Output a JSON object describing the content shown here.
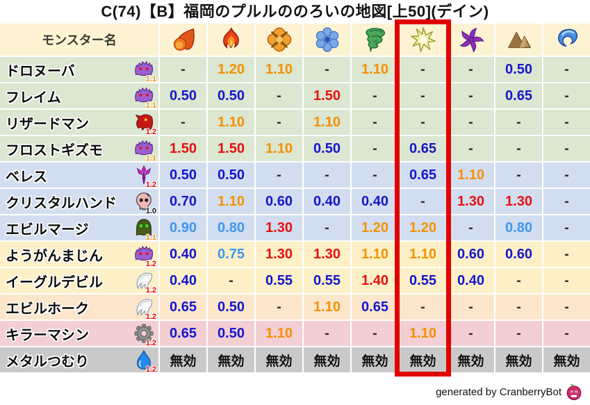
{
  "title": "C(74)【B】福岡のプルルののろいの地図[上50](デイン)",
  "header": {
    "monster_name_label": "モンスター名",
    "element_columns": [
      {
        "icon": "fireball-icon"
      },
      {
        "icon": "flame-icon"
      },
      {
        "icon": "explosion-icon"
      },
      {
        "icon": "snowflake-icon"
      },
      {
        "icon": "tornado-icon"
      },
      {
        "icon": "sparkle-icon"
      },
      {
        "icon": "pinwheel-icon"
      },
      {
        "icon": "mountain-icon"
      },
      {
        "icon": "wave-icon"
      }
    ],
    "highlighted_column_index": 5
  },
  "rows": [
    {
      "name": "ドロヌーバ",
      "icon": "purple-blob-monster-icon",
      "multiplier": "1.1",
      "multiplier_color": "#f59000",
      "palette": "green",
      "values": [
        "-",
        "1.20",
        "1.10",
        "-",
        "1.10",
        "-",
        "-",
        "0.50",
        "-"
      ]
    },
    {
      "name": "フレイム",
      "icon": "purple-blob-monster-icon",
      "multiplier": "1.1",
      "multiplier_color": "#f59000",
      "palette": "green",
      "values": [
        "0.50",
        "0.50",
        "-",
        "1.50",
        "-",
        "-",
        "-",
        "0.65",
        "-"
      ]
    },
    {
      "name": "リザードマン",
      "icon": "dragon-head-monster-icon",
      "multiplier": "1.2",
      "multiplier_color": "#e60000",
      "palette": "green",
      "values": [
        "-",
        "1.10",
        "-",
        "1.10",
        "-",
        "-",
        "-",
        "-",
        "-"
      ]
    },
    {
      "name": "フロストギズモ",
      "icon": "purple-blob-monster-icon",
      "multiplier": "1.1",
      "multiplier_color": "#f59000",
      "palette": "green",
      "values": [
        "1.50",
        "1.50",
        "1.10",
        "0.50",
        "-",
        "0.65",
        "-",
        "-",
        "-"
      ]
    },
    {
      "name": "ベレス",
      "icon": "trident-monster-icon",
      "multiplier": "1.2",
      "multiplier_color": "#e60000",
      "palette": "blue",
      "values": [
        "0.50",
        "0.50",
        "-",
        "-",
        "-",
        "0.65",
        "1.10",
        "-",
        "-"
      ]
    },
    {
      "name": "クリスタルハンド",
      "icon": "skull-monster-icon",
      "multiplier": "1.0",
      "multiplier_color": "#111111",
      "palette": "blue",
      "values": [
        "0.70",
        "1.10",
        "0.60",
        "0.40",
        "0.40",
        "-",
        "1.30",
        "1.30",
        "-"
      ]
    },
    {
      "name": "エビルマージ",
      "icon": "helmet-monster-icon",
      "multiplier": "1.1",
      "multiplier_color": "#f59000",
      "palette": "blue",
      "values": [
        "0.90",
        "0.80",
        "1.30",
        "-",
        "1.20",
        "1.20",
        "-",
        "0.80",
        "-"
      ]
    },
    {
      "name": "ようがんまじん",
      "icon": "purple-blob-monster-icon",
      "multiplier": "1.2",
      "multiplier_color": "#e60000",
      "palette": "cream",
      "values": [
        "0.40",
        "0.75",
        "1.30",
        "1.30",
        "1.10",
        "1.10",
        "0.60",
        "0.60",
        "-"
      ]
    },
    {
      "name": "イーグルデビル",
      "icon": "wing-monster-icon",
      "multiplier": "1.2",
      "multiplier_color": "#e60000",
      "palette": "cream",
      "values": [
        "0.40",
        "-",
        "0.55",
        "0.55",
        "1.40",
        "0.55",
        "0.40",
        "-",
        "-"
      ]
    },
    {
      "name": "エビルホーク",
      "icon": "wing-monster-icon",
      "multiplier": "1.2",
      "multiplier_color": "#e60000",
      "palette": "peach",
      "values": [
        "0.65",
        "0.50",
        "-",
        "1.10",
        "0.65",
        "-",
        "-",
        "-",
        "-"
      ]
    },
    {
      "name": "キラーマシン",
      "icon": "gear-monster-icon",
      "multiplier": "1.2",
      "multiplier_color": "#e60000",
      "palette": "pink",
      "values": [
        "0.65",
        "0.50",
        "1.10",
        "-",
        "-",
        "1.10",
        "-",
        "-",
        "-"
      ]
    },
    {
      "name": "メタルつむり",
      "icon": "slime-monster-icon",
      "multiplier": "1.2",
      "multiplier_color": "#e60000",
      "palette": "gray",
      "values": [
        "無効",
        "無効",
        "無効",
        "無効",
        "無効",
        "無効",
        "無効",
        "無効",
        "無効"
      ]
    }
  ],
  "colors": {
    "header_bg": "#fdf3d3",
    "palette": {
      "green": "#dbe7d1",
      "blue": "#d2def0",
      "cream": "#fdf0c7",
      "peach": "#fbe6cb",
      "pink": "#f3ced3",
      "gray": "#c9c9c9"
    },
    "strong_resist_text": "#1616cc",
    "mild_resist_text": "#3d97ef",
    "mild_weak_text": "#f59000",
    "strong_weak_text": "#e81010",
    "dash_text": "#2f2f2f",
    "immune_text": "#111111",
    "highlight_border": "#e00000"
  },
  "footer": {
    "credit": "generated by CranberryBot",
    "logo_icon": "cranberry-icon"
  }
}
